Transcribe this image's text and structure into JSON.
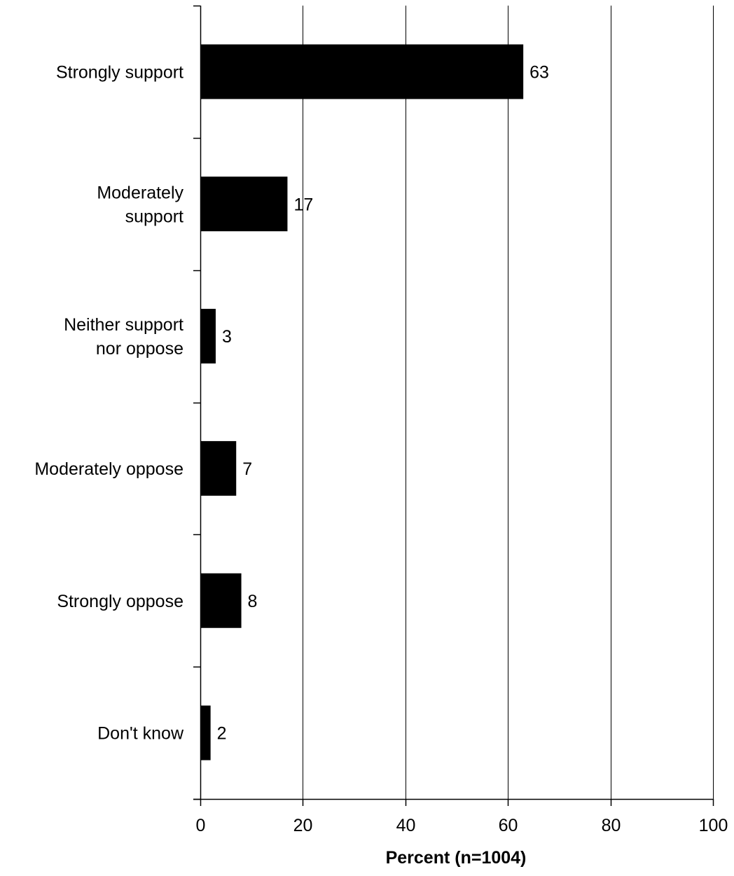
{
  "chart_data": {
    "type": "bar",
    "orientation": "horizontal",
    "categories": [
      [
        "Strongly support"
      ],
      [
        "Moderately",
        "support"
      ],
      [
        "Neither support",
        "nor oppose"
      ],
      [
        "Moderately oppose"
      ],
      [
        "Strongly oppose"
      ],
      [
        "Don't know"
      ]
    ],
    "values": [
      63,
      17,
      3,
      7,
      8,
      2
    ],
    "data_labels": [
      "63",
      "17",
      "3",
      "7",
      "8",
      "2"
    ],
    "xlabel": "Percent (n=1004)",
    "ylabel": "",
    "title": "",
    "xlim": [
      0,
      100
    ],
    "x_ticks": [
      0,
      20,
      40,
      60,
      80,
      100
    ],
    "x_tick_labels": [
      "0",
      "20",
      "40",
      "60",
      "80",
      "100"
    ],
    "grid": "vertical",
    "legend": "none",
    "colors": {
      "bar": "#000000",
      "grid": "#000000",
      "background": "#ffffff"
    }
  }
}
